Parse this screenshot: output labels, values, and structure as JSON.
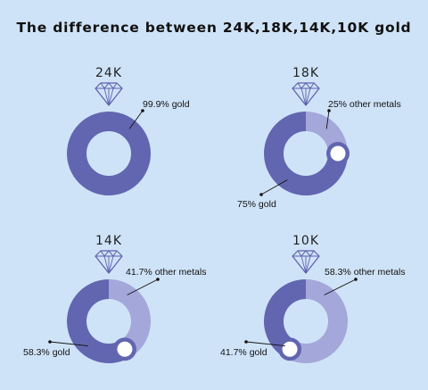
{
  "title": "The difference between 24K,18K,14K,10K gold",
  "colors": {
    "background": "#cfe3f8",
    "gold": "#6266b0",
    "other_metals": "#a4a7d9",
    "diamond": "#5e62ad"
  },
  "chart_data": [
    {
      "type": "pie",
      "label": "24K",
      "slices": [
        {
          "name": "gold",
          "value": 99.9,
          "text": "99.9% gold"
        }
      ]
    },
    {
      "type": "pie",
      "label": "18K",
      "slices": [
        {
          "name": "gold",
          "value": 75,
          "text": "75% gold"
        },
        {
          "name": "other metals",
          "value": 25,
          "text": "25% other metals"
        }
      ]
    },
    {
      "type": "pie",
      "label": "14K",
      "slices": [
        {
          "name": "gold",
          "value": 58.3,
          "text": "58.3% gold"
        },
        {
          "name": "other metals",
          "value": 41.7,
          "text": "41.7% other metals"
        }
      ]
    },
    {
      "type": "pie",
      "label": "10K",
      "slices": [
        {
          "name": "gold",
          "value": 41.7,
          "text": "41.7% gold"
        },
        {
          "name": "other metals",
          "value": 58.3,
          "text": "58.3% other metals"
        }
      ]
    }
  ]
}
